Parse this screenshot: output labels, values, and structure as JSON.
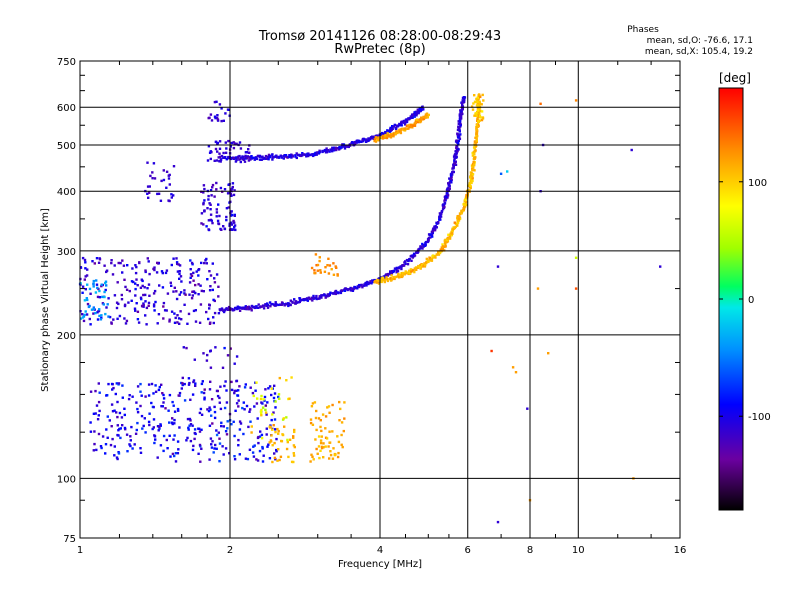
{
  "chart_data": {
    "type": "scatter",
    "title": "Tromsø 20141126 08:28:00-08:29:43",
    "subtitle": "RwPretec (8p)",
    "xlabel": "Frequency [MHz]",
    "ylabel": "Stationary phase Virtual Height [km]",
    "x_scale": "log",
    "y_scale": "log",
    "xlim": [
      1,
      16
    ],
    "ylim": [
      75,
      750
    ],
    "x_ticks": [
      1,
      2,
      4,
      6,
      8,
      10,
      16
    ],
    "x_tick_labels": [
      "1",
      "2",
      "4",
      "6",
      "8",
      "10",
      "16"
    ],
    "y_ticks": [
      75,
      100,
      200,
      300,
      400,
      500,
      600,
      750
    ],
    "y_tick_labels": [
      "75",
      "100",
      "200",
      "300",
      "400",
      "500",
      "600",
      "750"
    ],
    "grid": true,
    "stats": {
      "header": "Phases",
      "line_o": "mean, sd,O: -76.6, 17.1",
      "line_x": "mean, sd,X: 105.4, 19.2"
    },
    "colorbar": {
      "label": "[deg]",
      "range": [
        -180,
        180
      ],
      "ticks": [
        100,
        0,
        -100
      ],
      "tick_labels": [
        "100",
        "0",
        "-100"
      ]
    },
    "traces": [
      {
        "description": "O-mode F trace",
        "phase_deg": -110,
        "points": [
          [
            1.9,
            225
          ],
          [
            2.2,
            228
          ],
          [
            2.6,
            233
          ],
          [
            3.0,
            240
          ],
          [
            3.5,
            250
          ],
          [
            4.0,
            262
          ],
          [
            4.5,
            282
          ],
          [
            5.0,
            315
          ],
          [
            5.3,
            355
          ],
          [
            5.5,
            410
          ],
          [
            5.7,
            480
          ],
          [
            5.8,
            560
          ],
          [
            5.9,
            630
          ]
        ]
      },
      {
        "description": "X-mode F trace",
        "phase_deg": 110,
        "points": [
          [
            3.9,
            258
          ],
          [
            4.4,
            266
          ],
          [
            4.9,
            280
          ],
          [
            5.3,
            300
          ],
          [
            5.6,
            330
          ],
          [
            5.9,
            370
          ],
          [
            6.1,
            420
          ],
          [
            6.2,
            490
          ],
          [
            6.3,
            570
          ],
          [
            6.3,
            640
          ]
        ]
      },
      {
        "description": "O-mode second-hop trace",
        "phase_deg": -105,
        "points": [
          [
            1.9,
            470
          ],
          [
            2.2,
            470
          ],
          [
            2.5,
            472
          ],
          [
            2.9,
            478
          ],
          [
            3.3,
            492
          ],
          [
            3.7,
            510
          ],
          [
            4.1,
            530
          ],
          [
            4.5,
            560
          ],
          [
            4.9,
            600
          ]
        ]
      },
      {
        "description": "X-mode second-hop trace",
        "phase_deg": 120,
        "points": [
          [
            3.9,
            512
          ],
          [
            4.3,
            528
          ],
          [
            4.7,
            555
          ],
          [
            5.0,
            578
          ]
        ]
      }
    ]
  }
}
